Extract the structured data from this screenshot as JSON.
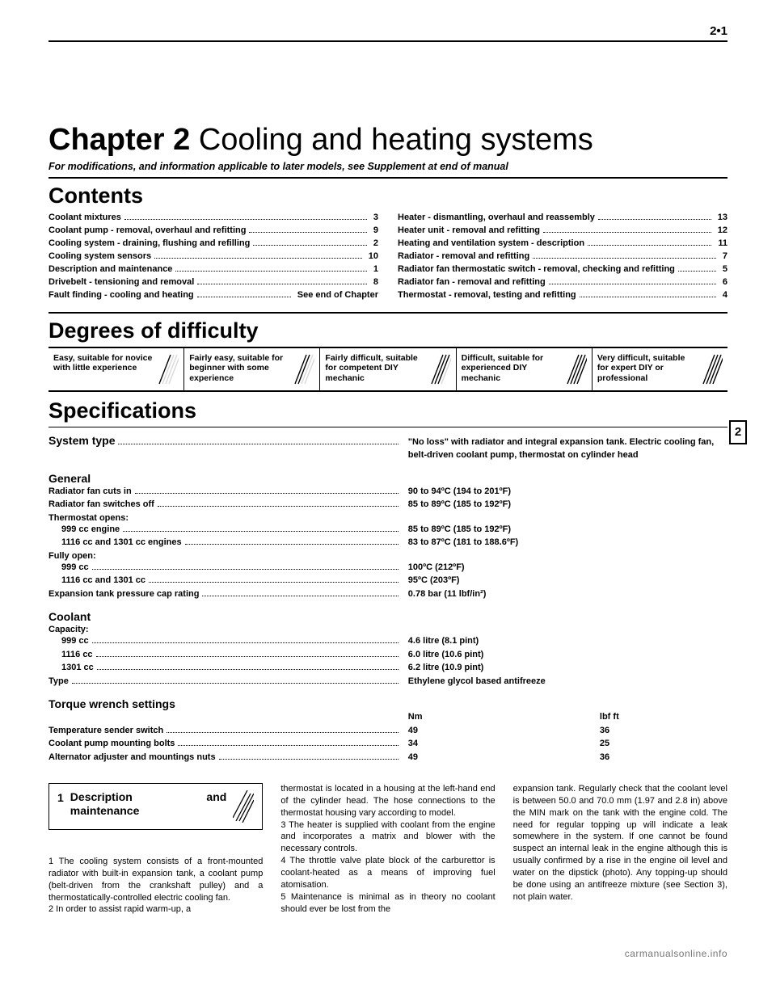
{
  "page_number": "2•1",
  "chapter_prefix": "Chapter 2",
  "chapter_title": "Cooling and heating systems",
  "subline": "For modifications, and information applicable to later models, see Supplement at end of manual",
  "contents_heading": "Contents",
  "contents_left": [
    {
      "label": "Coolant mixtures",
      "page": "3"
    },
    {
      "label": "Coolant pump - removal, overhaul and refitting",
      "page": "9"
    },
    {
      "label": "Cooling system - draining, flushing and refilling",
      "page": "2"
    },
    {
      "label": "Cooling system sensors",
      "page": "10"
    },
    {
      "label": "Description and maintenance",
      "page": "1"
    },
    {
      "label": "Drivebelt - tensioning and removal",
      "page": "8"
    },
    {
      "label": "Fault finding - cooling and heating",
      "page": "See end of Chapter"
    }
  ],
  "contents_right": [
    {
      "label": "Heater - dismantling, overhaul and reassembly",
      "page": "13"
    },
    {
      "label": "Heater unit - removal and refitting",
      "page": "12"
    },
    {
      "label": "Heating and ventilation system - description",
      "page": "11"
    },
    {
      "label": "Radiator - removal and refitting",
      "page": "7"
    },
    {
      "label": "Radiator fan thermostatic switch - removal, checking and refitting",
      "page": "5"
    },
    {
      "label": "Radiator fan - removal and refitting",
      "page": "6"
    },
    {
      "label": "Thermostat - removal, testing and refitting",
      "page": "4"
    }
  ],
  "difficulty_heading": "Degrees of difficulty",
  "difficulty": [
    "Easy, suitable for novice with little experience",
    "Fairly easy, suitable for beginner with some experience",
    "Fairly difficult, suitable for competent DIY mechanic",
    "Difficult, suitable for experienced  DIY mechanic",
    "Very difficult, suitable for expert DIY or  professional"
  ],
  "side_tab": "2",
  "spec_heading": "Specifications",
  "system_type_label": "System type",
  "system_type_value": "\"No loss\" with radiator and integral expansion tank. Electric cooling fan, belt-driven coolant pump, thermostat on cylinder head",
  "general_heading": "General",
  "general_rows": [
    {
      "label": "Radiator fan cuts in",
      "value": "90 to 94ºC (194 to 201ºF)"
    },
    {
      "label": "Radiator fan switches off",
      "value": "85 to 89ºC (185 to 192ºF)"
    }
  ],
  "thermostat_opens_label": "Thermostat opens:",
  "thermostat_opens_rows": [
    {
      "label": "999 cc engine",
      "value": "85 to 89ºC (185 to 192ºF)"
    },
    {
      "label": "1116 cc and 1301 cc engines",
      "value": "83 to 87ºC (181 to 188.6ºF)"
    }
  ],
  "fully_open_label": "Fully open:",
  "fully_open_rows": [
    {
      "label": "999 cc",
      "value": "100ºC (212ºF)"
    },
    {
      "label": "1116 cc and 1301 cc",
      "value": "95ºC (203ºF)"
    }
  ],
  "expansion_row": {
    "label": "Expansion tank pressure cap rating",
    "value": "0.78 bar (11 lbf/in²)"
  },
  "coolant_heading": "Coolant",
  "coolant_cap_label": "Capacity:",
  "coolant_rows": [
    {
      "label": "999 cc",
      "value": "4.6 litre (8.1 pint)"
    },
    {
      "label": "1116 cc",
      "value": "6.0 litre (10.6 pint)"
    },
    {
      "label": "1301 cc",
      "value": "6.2 litre (10.9 pint)"
    }
  ],
  "coolant_type_row": {
    "label": "Type",
    "value": "Ethylene glycol based antifreeze"
  },
  "torque_heading": "Torque wrench settings",
  "torque_header": {
    "left": "Nm",
    "right": "lbf ft"
  },
  "torque_rows": [
    {
      "label": "Temperature sender switch",
      "left": "49",
      "right": "36"
    },
    {
      "label": "Coolant pump mounting bolts",
      "left": "34",
      "right": "25"
    },
    {
      "label": "Alternator adjuster and mountings nuts",
      "left": "49",
      "right": "36"
    }
  ],
  "section_box": {
    "num": "1",
    "title": "Description and maintenance"
  },
  "col1_paras": [
    "1 The cooling system consists of a front-mounted radiator with built-in expansion tank, a coolant pump (belt-driven from the crankshaft pulley) and a thermostatically-controlled electric cooling fan.",
    "2 In order to assist rapid warm-up, a"
  ],
  "col2_paras": [
    "thermostat is located in a housing at the left-hand end of the cylinder head. The hose connections to the thermostat housing vary according to model.",
    "3 The heater is supplied with coolant from the engine and incorporates a matrix and blower with the necessary controls.",
    "4 The throttle valve plate block of the carburettor is coolant-heated as a means of improving fuel atomisation.",
    "5 Maintenance is minimal as in theory no coolant should ever be lost from the"
  ],
  "col3_paras": [
    "expansion tank. Regularly check that the coolant level is between 50.0 and 70.0 mm (1.97 and 2.8 in) above the MIN mark on the tank with the engine cold. The need for regular topping up will indicate a leak somewhere in the system. If one cannot be found suspect an internal leak in the engine although this is usually confirmed by a rise in the engine oil level and water on the dipstick (photo). Any topping-up should be done using an antifreeze mixture (see Section 3), not plain water."
  ],
  "footer": "carmanualsonline.info"
}
